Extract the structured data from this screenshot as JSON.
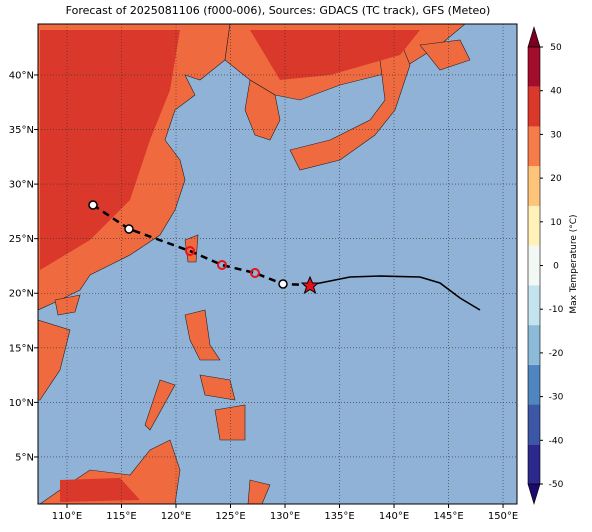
{
  "map": {
    "title": "Forecast of 2025081106 (f000-006), Sources: GDACS (TC track), GFS (Meteo)",
    "xlim": [
      107.34,
      151.28
    ],
    "ylim": [
      0.69,
      44.67
    ],
    "xticks": [
      {
        "value": 110,
        "label": "110°E"
      },
      {
        "value": 115,
        "label": "115°E"
      },
      {
        "value": 120,
        "label": "120°E"
      },
      {
        "value": 125,
        "label": "125°E"
      },
      {
        "value": 130,
        "label": "130°E"
      },
      {
        "value": 135,
        "label": "135°E"
      },
      {
        "value": 140,
        "label": "140°E"
      },
      {
        "value": 145,
        "label": "145°E"
      },
      {
        "value": 150,
        "label": "150°E"
      }
    ],
    "yticks": [
      {
        "value": 5,
        "label": "5°N"
      },
      {
        "value": 10,
        "label": "10°N"
      },
      {
        "value": 15,
        "label": "15°N"
      },
      {
        "value": 20,
        "label": "20°N"
      },
      {
        "value": 25,
        "label": "25°N"
      },
      {
        "value": 30,
        "label": "30°N"
      },
      {
        "value": 35,
        "label": "35°N"
      },
      {
        "value": 40,
        "label": "40°N"
      }
    ],
    "grid": true,
    "colorbar": {
      "label": "Max Temperature (°C)",
      "lim": [
        -50,
        50
      ],
      "ticks": [
        -50,
        -40,
        -30,
        -20,
        -10,
        0,
        10,
        20,
        30,
        40,
        50
      ],
      "colors": [
        "#2b2a8c",
        "#3b57a6",
        "#4f86bf",
        "#8bbbd9",
        "#c3e3ee",
        "#f2f9f5",
        "#fff1b8",
        "#fdc47a",
        "#f67d4a",
        "#d9382a",
        "#a30d2b"
      ],
      "extend_colors": [
        "#1a0a6e",
        "#7a0020"
      ]
    }
  }
}
